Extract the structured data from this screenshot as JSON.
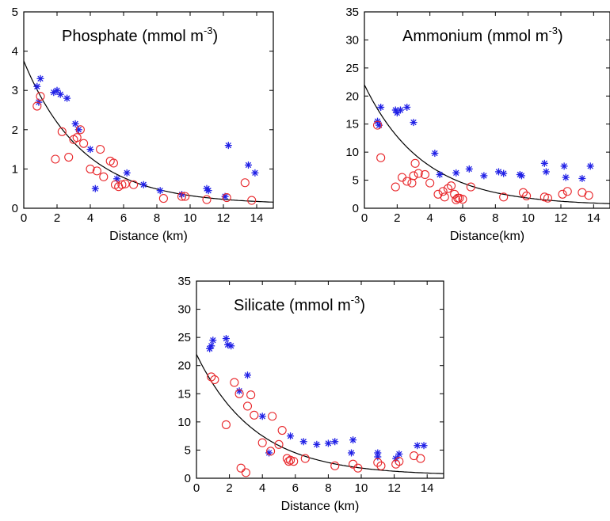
{
  "colors": {
    "star": "#1f1fe6",
    "circle": "#e8262a",
    "line": "#000000",
    "axis": "#000000"
  },
  "chart_data": [
    {
      "type": "scatter",
      "title": "Phosphate (mmol m",
      "title_sup": "-3",
      "title_close": ")",
      "xlabel": "Distance (km)",
      "xlim": [
        0,
        15
      ],
      "ylim": [
        0,
        5
      ],
      "xticks": [
        "0",
        "2",
        "4",
        "6",
        "8",
        "10",
        "12",
        "14"
      ],
      "yticks": [
        "0",
        "1",
        "2",
        "3",
        "4",
        "5"
      ],
      "series": [
        {
          "marker": "star",
          "points": [
            [
              0.8,
              3.1
            ],
            [
              1.0,
              3.3
            ],
            [
              0.9,
              2.7
            ],
            [
              1.8,
              2.95
            ],
            [
              2.0,
              3.0
            ],
            [
              2.2,
              2.9
            ],
            [
              2.6,
              2.8
            ],
            [
              3.1,
              2.15
            ],
            [
              3.3,
              2.0
            ],
            [
              4.0,
              1.5
            ],
            [
              4.3,
              0.5
            ],
            [
              5.6,
              0.75
            ],
            [
              6.2,
              0.9
            ],
            [
              7.2,
              0.6
            ],
            [
              8.2,
              0.45
            ],
            [
              9.5,
              0.35
            ],
            [
              11.0,
              0.5
            ],
            [
              11.1,
              0.45
            ],
            [
              12.1,
              0.3
            ],
            [
              12.3,
              1.6
            ],
            [
              13.5,
              1.1
            ],
            [
              13.9,
              0.9
            ]
          ]
        },
        {
          "marker": "circle",
          "points": [
            [
              0.8,
              2.6
            ],
            [
              1.0,
              2.85
            ],
            [
              1.9,
              1.25
            ],
            [
              2.3,
              1.95
            ],
            [
              2.7,
              1.3
            ],
            [
              3.0,
              1.75
            ],
            [
              3.2,
              1.8
            ],
            [
              3.4,
              2.0
            ],
            [
              3.6,
              1.65
            ],
            [
              4.0,
              1.0
            ],
            [
              4.4,
              0.95
            ],
            [
              4.6,
              1.5
            ],
            [
              4.8,
              0.8
            ],
            [
              5.2,
              1.2
            ],
            [
              5.4,
              1.15
            ],
            [
              5.5,
              0.6
            ],
            [
              5.7,
              0.55
            ],
            [
              5.9,
              0.6
            ],
            [
              6.1,
              0.62
            ],
            [
              6.6,
              0.6
            ],
            [
              8.4,
              0.25
            ],
            [
              9.5,
              0.3
            ],
            [
              9.7,
              0.3
            ],
            [
              11.0,
              0.22
            ],
            [
              12.2,
              0.27
            ],
            [
              13.3,
              0.65
            ],
            [
              13.7,
              0.2
            ]
          ]
        }
      ],
      "fit_curve": {
        "a": 3.65,
        "b": 0.28,
        "c": 0.1
      }
    },
    {
      "type": "scatter",
      "title": "Ammonium (mmol m",
      "title_sup": "-3",
      "title_close": ")",
      "xlabel": "Distance(km)",
      "xlim": [
        0,
        15
      ],
      "ylim": [
        0,
        35
      ],
      "xticks": [
        "0",
        "2",
        "4",
        "6",
        "8",
        "10",
        "12",
        "14"
      ],
      "yticks": [
        "0",
        "5",
        "10",
        "15",
        "20",
        "25",
        "30",
        "35"
      ],
      "series": [
        {
          "marker": "star",
          "points": [
            [
              0.8,
              15.5
            ],
            [
              0.9,
              14.8
            ],
            [
              1.0,
              18.0
            ],
            [
              1.9,
              17.5
            ],
            [
              2.0,
              17.0
            ],
            [
              2.2,
              17.5
            ],
            [
              2.6,
              18.0
            ],
            [
              3.0,
              15.3
            ],
            [
              4.3,
              9.8
            ],
            [
              4.6,
              6.0
            ],
            [
              5.6,
              6.3
            ],
            [
              6.4,
              7.0
            ],
            [
              7.3,
              5.8
            ],
            [
              8.2,
              6.5
            ],
            [
              8.5,
              6.2
            ],
            [
              9.5,
              6.0
            ],
            [
              9.6,
              5.8
            ],
            [
              11.0,
              8.0
            ],
            [
              11.1,
              6.5
            ],
            [
              12.2,
              7.5
            ],
            [
              12.3,
              5.5
            ],
            [
              13.3,
              5.3
            ],
            [
              13.8,
              7.5
            ]
          ]
        },
        {
          "marker": "circle",
          "points": [
            [
              0.8,
              14.8
            ],
            [
              1.0,
              9.0
            ],
            [
              1.9,
              3.8
            ],
            [
              2.3,
              5.5
            ],
            [
              2.6,
              4.8
            ],
            [
              2.9,
              4.5
            ],
            [
              3.0,
              5.8
            ],
            [
              3.1,
              8.0
            ],
            [
              3.3,
              6.2
            ],
            [
              3.7,
              6.0
            ],
            [
              4.0,
              4.5
            ],
            [
              4.5,
              2.5
            ],
            [
              4.8,
              3.0
            ],
            [
              4.9,
              2.0
            ],
            [
              5.1,
              3.5
            ],
            [
              5.3,
              4.0
            ],
            [
              5.5,
              2.5
            ],
            [
              5.6,
              1.5
            ],
            [
              5.7,
              1.8
            ],
            [
              5.8,
              1.8
            ],
            [
              6.0,
              1.6
            ],
            [
              6.5,
              3.8
            ],
            [
              8.5,
              2.0
            ],
            [
              9.7,
              2.8
            ],
            [
              9.9,
              2.2
            ],
            [
              11.0,
              2.0
            ],
            [
              11.2,
              1.8
            ],
            [
              12.1,
              2.5
            ],
            [
              12.4,
              3.0
            ],
            [
              13.3,
              2.8
            ],
            [
              13.7,
              2.3
            ]
          ]
        }
      ],
      "fit_curve": {
        "a": 21.5,
        "b": 0.28,
        "c": 0.5
      }
    },
    {
      "type": "scatter",
      "title": "Silicate (mmol m",
      "title_sup": "-3",
      "title_close": ")",
      "xlabel": "Distance (km)",
      "xlim": [
        0,
        15
      ],
      "ylim": [
        0,
        35
      ],
      "xticks": [
        "0",
        "2",
        "4",
        "6",
        "8",
        "10",
        "12",
        "14"
      ],
      "yticks": [
        "0",
        "5",
        "10",
        "15",
        "20",
        "25",
        "30",
        "35"
      ],
      "series": [
        {
          "marker": "star",
          "points": [
            [
              0.8,
              23.0
            ],
            [
              1.0,
              24.5
            ],
            [
              0.9,
              23.5
            ],
            [
              1.8,
              24.8
            ],
            [
              1.9,
              23.7
            ],
            [
              2.1,
              23.5
            ],
            [
              2.6,
              15.5
            ],
            [
              3.1,
              18.3
            ],
            [
              4.0,
              11.0
            ],
            [
              4.4,
              4.5
            ],
            [
              5.7,
              7.5
            ],
            [
              6.5,
              6.5
            ],
            [
              7.3,
              6.0
            ],
            [
              8.0,
              6.2
            ],
            [
              8.4,
              6.5
            ],
            [
              9.5,
              6.8
            ],
            [
              9.4,
              4.5
            ],
            [
              11.0,
              4.5
            ],
            [
              11.0,
              3.8
            ],
            [
              12.1,
              3.5
            ],
            [
              12.3,
              4.3
            ],
            [
              13.4,
              5.8
            ],
            [
              13.8,
              5.8
            ]
          ]
        },
        {
          "marker": "circle",
          "points": [
            [
              0.9,
              18.0
            ],
            [
              1.1,
              17.5
            ],
            [
              1.8,
              9.5
            ],
            [
              2.3,
              17.0
            ],
            [
              2.6,
              15.0
            ],
            [
              2.7,
              1.8
            ],
            [
              3.0,
              1.0
            ],
            [
              3.1,
              12.8
            ],
            [
              3.3,
              14.8
            ],
            [
              3.5,
              11.2
            ],
            [
              4.0,
              6.3
            ],
            [
              4.5,
              4.8
            ],
            [
              4.6,
              11.0
            ],
            [
              5.0,
              6.0
            ],
            [
              5.2,
              8.5
            ],
            [
              5.5,
              3.5
            ],
            [
              5.6,
              3.0
            ],
            [
              5.7,
              3.2
            ],
            [
              5.9,
              3.0
            ],
            [
              6.6,
              3.5
            ],
            [
              8.4,
              2.2
            ],
            [
              9.5,
              2.5
            ],
            [
              9.8,
              1.8
            ],
            [
              11.0,
              2.8
            ],
            [
              11.2,
              2.2
            ],
            [
              12.1,
              2.5
            ],
            [
              12.3,
              3.0
            ],
            [
              13.2,
              4.0
            ],
            [
              13.6,
              3.5
            ]
          ]
        }
      ],
      "fit_curve": {
        "a": 21.5,
        "b": 0.28,
        "c": 0.5
      }
    }
  ]
}
